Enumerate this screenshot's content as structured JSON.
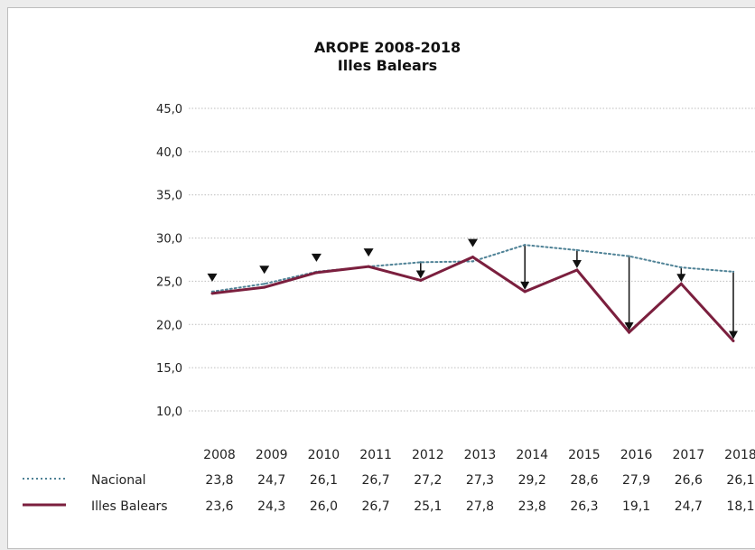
{
  "chart_data": {
    "type": "line",
    "title": "AROPE 2008-2018",
    "subtitle": "Illes Balears",
    "categories": [
      "2008",
      "2009",
      "2010",
      "2011",
      "2012",
      "2013",
      "2014",
      "2015",
      "2016",
      "2017",
      "2018"
    ],
    "yticks": [
      "45,0",
      "40,0",
      "35,0",
      "30,0",
      "25,0",
      "20,0",
      "15,0",
      "10,0"
    ],
    "ylim": [
      10,
      45
    ],
    "grid": true,
    "series": [
      {
        "name": "Nacional",
        "style": "dotted",
        "color": "#4f8296",
        "values": [
          23.8,
          24.7,
          26.1,
          26.7,
          27.2,
          27.3,
          29.2,
          28.6,
          27.9,
          26.6,
          26.1
        ],
        "labels": [
          "23,8",
          "24,7",
          "26,1",
          "26,7",
          "27,2",
          "27,3",
          "29,2",
          "28,6",
          "27,9",
          "26,6",
          "26,1"
        ]
      },
      {
        "name": "Illes Balears",
        "style": "solid",
        "color": "#7b1f3e",
        "values": [
          23.6,
          24.3,
          26.0,
          26.7,
          25.1,
          27.8,
          23.8,
          26.3,
          19.1,
          24.7,
          18.1
        ],
        "labels": [
          "23,6",
          "24,3",
          "26,0",
          "26,7",
          "25,1",
          "27,8",
          "23,8",
          "26,3",
          "19,1",
          "24,7",
          "18,1"
        ]
      }
    ]
  }
}
